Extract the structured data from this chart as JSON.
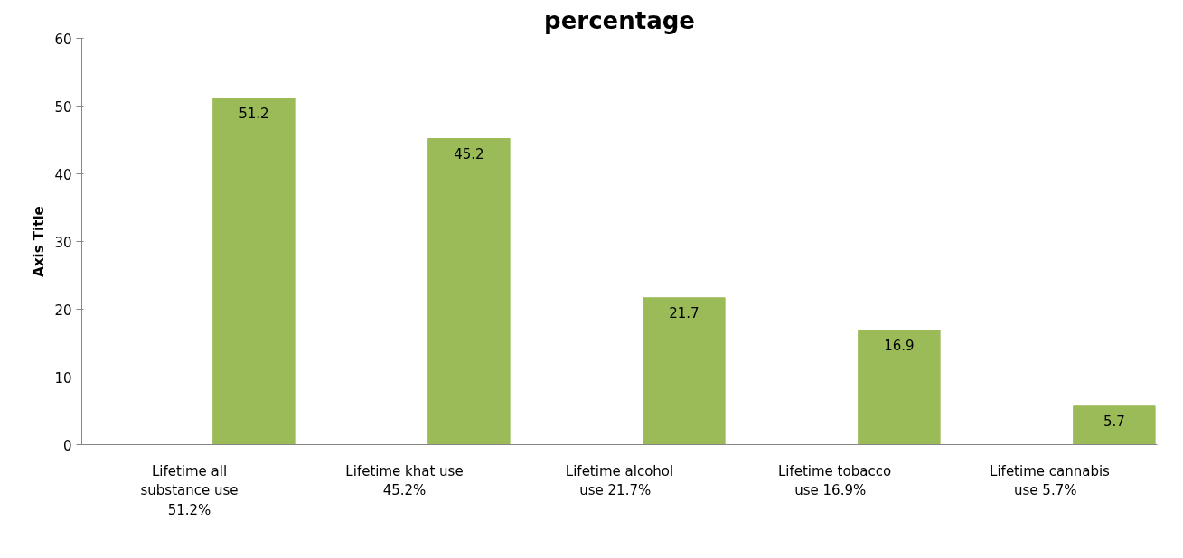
{
  "chart_data": {
    "type": "bar",
    "title": "percentage",
    "ylabel": "Axis Title",
    "categories": [
      "Lifetime all\nsubstance use\n51.2%",
      "Lifetime khat use\n45.2%",
      "Lifetime alcohol\nuse   21.7%",
      "Lifetime tobacco\nuse   16.9%",
      "Lifetime cannabis\nuse   5.7%"
    ],
    "values": [
      51.2,
      45.2,
      21.7,
      16.9,
      5.7
    ],
    "color": "#9bbb59",
    "ylim": [
      0,
      60
    ],
    "yticks": [
      0,
      10,
      20,
      30,
      40,
      50,
      60
    ],
    "grid": false,
    "data_labels": true
  }
}
